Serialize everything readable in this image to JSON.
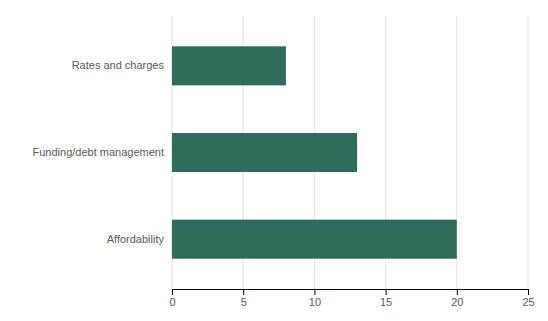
{
  "chart_data": {
    "type": "bar",
    "orientation": "horizontal",
    "categories": [
      "Affordability",
      "Funding/debt management",
      "Rates and charges"
    ],
    "values": [
      20,
      13,
      8
    ],
    "color": "#2d6b5a",
    "xlim": [
      0,
      25
    ],
    "xticks": [
      0,
      5,
      10,
      15,
      20,
      25
    ],
    "grid": true
  }
}
